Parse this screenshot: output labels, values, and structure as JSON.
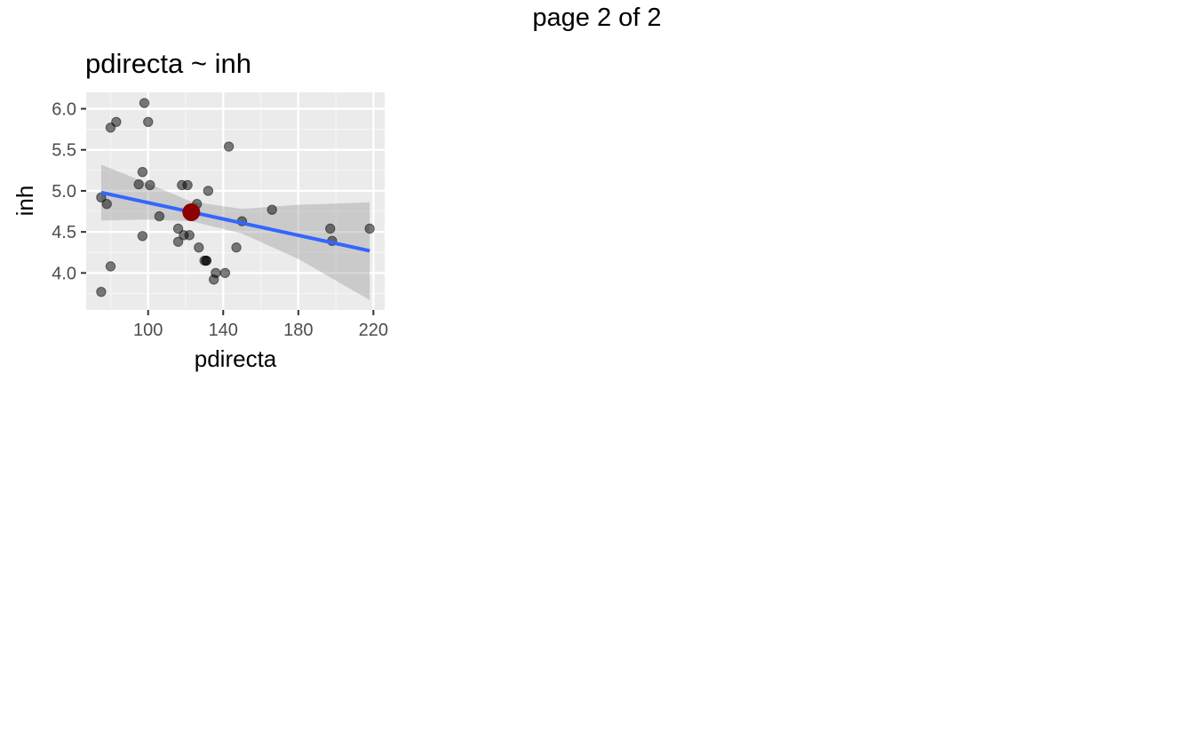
{
  "page": {
    "title": "page 2 of 2"
  },
  "chart_data": {
    "type": "scatter",
    "title": "pdirecta ~ inh",
    "xlabel": "pdirecta",
    "ylabel": "inh",
    "xlim": [
      67,
      226
    ],
    "ylim": [
      3.55,
      6.2
    ],
    "x_ticks": [
      100,
      140,
      180,
      220
    ],
    "x_tick_labels": [
      "100",
      "140",
      "180",
      "220"
    ],
    "x_minor_ticks": [
      80,
      120,
      160,
      200
    ],
    "y_ticks": [
      4.0,
      4.5,
      5.0,
      5.5,
      6.0
    ],
    "y_tick_labels": [
      "4.0",
      "4.5",
      "5.0",
      "5.5",
      "6.0"
    ],
    "y_minor_ticks": [
      3.75,
      4.25,
      4.75,
      5.25,
      5.75
    ],
    "grid": true,
    "series": [
      {
        "kind": "points",
        "color": "#000000",
        "opacity": 0.5,
        "x": [
          75,
          75,
          78,
          80,
          80,
          83,
          95,
          97,
          97,
          98,
          100,
          101,
          106,
          116,
          116,
          118,
          119,
          121,
          122,
          126,
          127,
          130,
          131,
          131,
          132,
          135,
          136,
          141,
          143,
          147,
          150,
          166,
          197,
          198,
          218
        ],
        "y": [
          4.92,
          3.77,
          4.84,
          4.08,
          5.77,
          5.84,
          5.08,
          5.23,
          4.45,
          6.07,
          5.84,
          5.07,
          4.69,
          4.54,
          4.38,
          5.07,
          4.46,
          5.07,
          4.46,
          4.84,
          4.31,
          4.15,
          4.15,
          4.15,
          5.0,
          3.92,
          4.0,
          4.0,
          5.54,
          4.31,
          4.63,
          4.77,
          4.54,
          4.39,
          4.54
        ]
      },
      {
        "kind": "regression-line",
        "color": "#3366ff",
        "x": [
          75,
          218
        ],
        "y": [
          4.98,
          4.27
        ]
      },
      {
        "kind": "confidence-band",
        "color": "#999999",
        "opacity": 0.4,
        "x": [
          75,
          100,
          123,
          150,
          180,
          218
        ],
        "upper": [
          5.32,
          5.09,
          4.87,
          4.78,
          4.83,
          4.86
        ],
        "lower": [
          4.64,
          4.65,
          4.63,
          4.48,
          4.17,
          3.67
        ]
      },
      {
        "kind": "highlight-point",
        "color": "#8b0000",
        "x": [
          123
        ],
        "y": [
          4.74
        ]
      }
    ]
  }
}
